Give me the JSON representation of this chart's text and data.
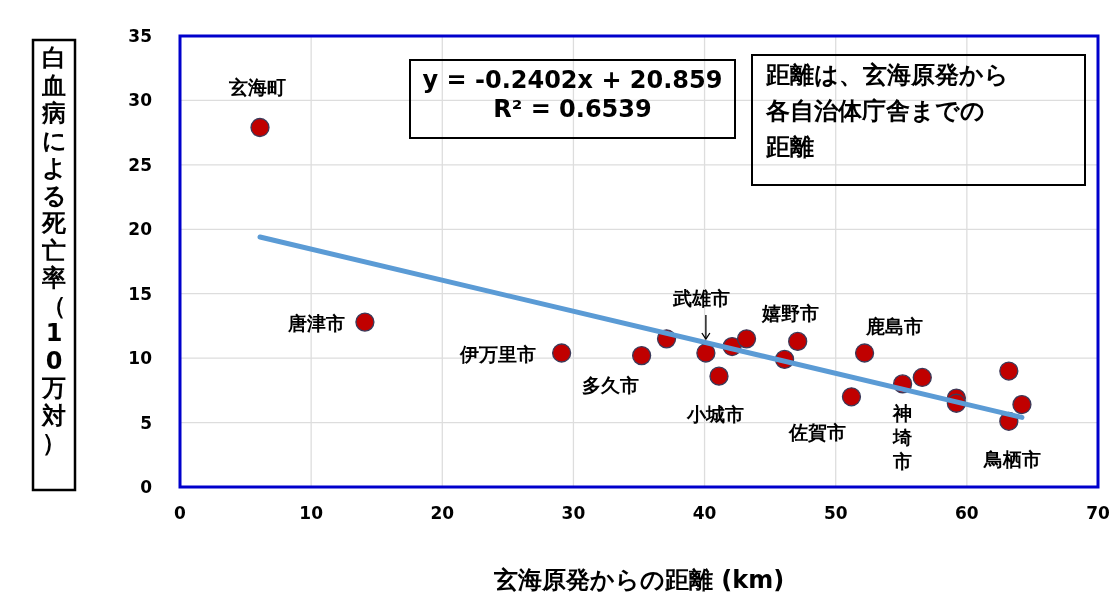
{
  "chart_data": {
    "type": "scatter",
    "xlabel": "玄海原発からの距離 (km)",
    "ylabel": "白血病による死亡率（10万対）",
    "xlim": [
      0,
      70
    ],
    "xticks": [
      0,
      10,
      20,
      30,
      40,
      50,
      60,
      70
    ],
    "ylim": [
      0,
      35
    ],
    "yticks": [
      0,
      5,
      10,
      15,
      20,
      25,
      30,
      35
    ],
    "grid": true,
    "series": [
      {
        "marker": "circle",
        "color": "#c00000",
        "x": [
          6.1,
          14.1,
          29.1,
          35.2,
          37.1,
          40.1,
          41.1,
          42.1,
          43.2,
          46.1,
          47.1,
          51.2,
          52.2,
          55.1,
          56.6,
          59.2,
          59.2,
          63.2,
          63.2,
          64.2
        ],
        "values": [
          27.9,
          12.8,
          10.4,
          10.2,
          11.5,
          10.4,
          8.6,
          10.9,
          11.5,
          9.9,
          11.3,
          7.0,
          10.4,
          8.0,
          8.5,
          6.9,
          6.5,
          9.0,
          5.1,
          6.4
        ]
      },
      {
        "type": "line",
        "color": "#5b9bd5",
        "x": [
          6.1,
          64.2
        ],
        "values": [
          19.4,
          5.4
        ]
      }
    ],
    "annotations": [
      {
        "text": "y = -0.2402x + 20.859\nR² = 0.6539"
      },
      {
        "text": "距離は、玄海原発から"
      },
      {
        "text": "各自治体庁舎までの"
      },
      {
        "text": "距離"
      },
      {
        "text": "玄海町",
        "x": 6.1,
        "y": 27.9
      },
      {
        "text": "唐津市",
        "x": 14.1,
        "y": 12.8
      },
      {
        "text": "伊万里市",
        "x": 29.1,
        "y": 10.4
      },
      {
        "text": "多久市",
        "x": 35.2,
        "y": 10.2
      },
      {
        "text": "武雄市",
        "x": 40.1,
        "y": 10.4
      },
      {
        "text": "小城市",
        "x": 41.1,
        "y": 8.6
      },
      {
        "text": "嬉野市",
        "x": 47.1,
        "y": 11.3
      },
      {
        "text": "鹿島市",
        "x": 52.2,
        "y": 10.4
      },
      {
        "text": "佐賀市",
        "x": 51.2,
        "y": 7.0
      },
      {
        "text": "神埼市",
        "x": 55.1,
        "y": 8.0
      },
      {
        "text": "鳥栖市",
        "x": 63.2,
        "y": 5.1
      }
    ]
  }
}
